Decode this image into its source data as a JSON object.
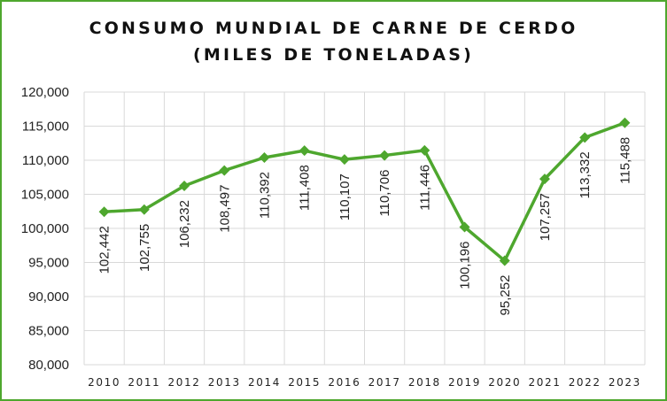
{
  "chart_data": {
    "type": "line",
    "title_line1": "CONSUMO MUNDIAL DE CARNE DE CERDO",
    "title_line2": "(MILES DE TONELADAS)",
    "categories": [
      "2010",
      "2011",
      "2012",
      "2013",
      "2014",
      "2015",
      "2016",
      "2017",
      "2018",
      "2019",
      "2020",
      "2021",
      "2022",
      "2023"
    ],
    "values": [
      102442,
      102755,
      106232,
      108497,
      110392,
      111408,
      110107,
      110706,
      111446,
      100196,
      95252,
      107257,
      113332,
      115488
    ],
    "data_labels": [
      "102,442",
      "102,755",
      "106,232",
      "108,497",
      "110,392",
      "111,408",
      "110,107",
      "110,706",
      "111,446",
      "100,196",
      "95,252",
      "107,257",
      "113,332",
      "115,488"
    ],
    "y_ticks": [
      "80,000",
      "85,000",
      "90,000",
      "95,000",
      "100,000",
      "105,000",
      "110,000",
      "115,000",
      "120,000"
    ],
    "ylim": [
      80000,
      120000
    ],
    "grid": true,
    "legend": "none",
    "colors": {
      "line": "#4ea72e",
      "marker": "#4ea72e",
      "grid": "#d9d9d9",
      "border": "#4ea72e"
    }
  }
}
